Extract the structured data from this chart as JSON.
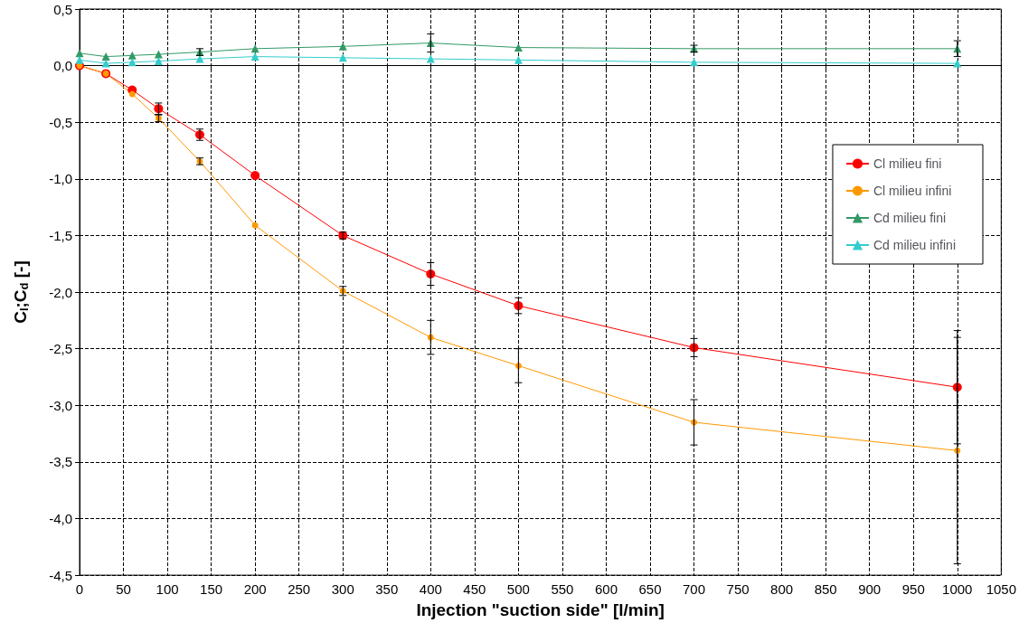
{
  "chart_data": {
    "type": "line",
    "xlabel": "Injection \"suction side\" [l/min]",
    "ylabel": "C$_{l}$;C$_{d}$ [-]",
    "x": [
      0,
      30,
      60,
      90,
      137,
      200,
      300,
      400,
      500,
      700,
      1000
    ],
    "xlim": [
      0,
      1050
    ],
    "xticks": [
      0,
      50,
      100,
      150,
      200,
      250,
      300,
      350,
      400,
      450,
      500,
      550,
      600,
      650,
      700,
      750,
      800,
      850,
      900,
      950,
      1000,
      1050
    ],
    "ylim": [
      -4.5,
      0.5
    ],
    "yticks": [
      {
        "value": 0.5,
        "label": "0,5"
      },
      {
        "value": 0,
        "label": "0,0"
      },
      {
        "value": -0.5,
        "label": "-0,5"
      },
      {
        "value": -1,
        "label": "-1,0"
      },
      {
        "value": -1.5,
        "label": "-1,5"
      },
      {
        "value": -2,
        "label": "-2,0"
      },
      {
        "value": -2.5,
        "label": "-2,5"
      },
      {
        "value": -3,
        "label": "-3,0"
      },
      {
        "value": -3.5,
        "label": "-3,5"
      },
      {
        "value": -4,
        "label": "-4,0"
      },
      {
        "value": -4.5,
        "label": "-4,5"
      }
    ],
    "grid": true,
    "legend": "right",
    "line_style": "solid",
    "series": [
      {
        "name": "Cl milieu fini",
        "color": "#ff0000",
        "marker": "circle",
        "values": [
          0,
          -0.07,
          -0.215,
          -0.38,
          -0.61,
          -0.97,
          -1.5,
          -1.84,
          -2.12,
          -2.49,
          -2.84
        ],
        "errors": [
          null,
          null,
          null,
          0.05,
          0.05,
          null,
          0.03,
          0.1,
          0.07,
          0.08,
          0.5
        ]
      },
      {
        "name": "Cl milieu infini",
        "color": "#ff9900",
        "marker": "circle",
        "values": [
          0,
          -0.07,
          -0.25,
          -0.465,
          -0.845,
          -1.41,
          -1.99,
          -2.4,
          -2.65,
          -3.15,
          -3.4
        ],
        "errors": [
          null,
          null,
          null,
          0.03,
          0.03,
          null,
          0.04,
          0.15,
          0.15,
          0.2,
          1.0
        ]
      },
      {
        "name": "Cd milieu fini",
        "color": "#339966",
        "marker": "triangle",
        "values": [
          0.11,
          0.08,
          0.09,
          0.1,
          0.12,
          0.15,
          0.17,
          0.2,
          0.16,
          0.15,
          0.15
        ],
        "errors": [
          null,
          null,
          null,
          null,
          0.03,
          null,
          null,
          0.08,
          null,
          0.03,
          0.07
        ]
      },
      {
        "name": "Cd milieu infini",
        "color": "#33cccc",
        "marker": "triangle",
        "values": [
          0.05,
          0.02,
          0.03,
          0.04,
          0.06,
          0.08,
          0.07,
          0.06,
          0.05,
          0.03,
          0.02
        ]
      }
    ]
  }
}
